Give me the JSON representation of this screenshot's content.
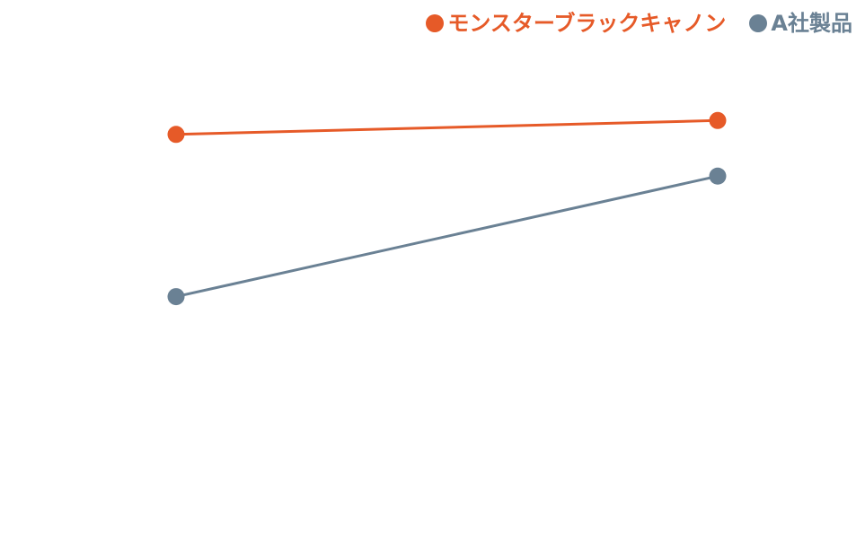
{
  "chart_data": {
    "type": "line",
    "categories": [
      "",
      ""
    ],
    "series": [
      {
        "name": "モンスターブラックキャノン",
        "values": [
          86,
          89
        ],
        "color": "#E65A28"
      },
      {
        "name": "A社製品",
        "values": [
          51,
          77
        ],
        "color": "#6A8194"
      }
    ],
    "ylim": [
      0,
      115
    ],
    "grid": false,
    "legend_position": "top-right"
  }
}
